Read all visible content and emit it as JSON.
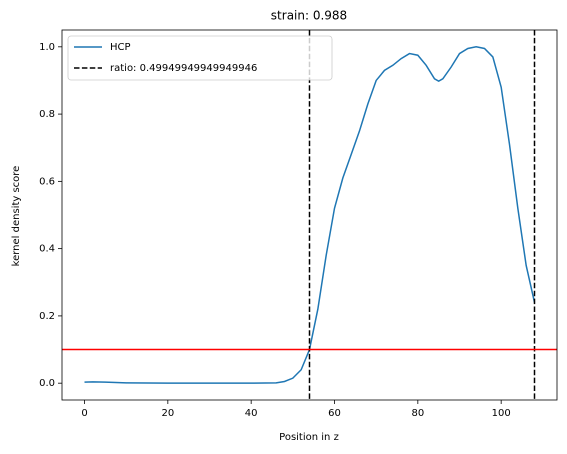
{
  "chart_data": {
    "type": "line",
    "title": "strain: 0.988",
    "xlabel": "Position in z",
    "ylabel": "kernel density score",
    "series": [
      {
        "name": "HCP",
        "color": "#1f77b4",
        "x": [
          0,
          2,
          5,
          10,
          20,
          40,
          46,
          48,
          50,
          52,
          54,
          56,
          58,
          60,
          62,
          64,
          66,
          68,
          70,
          72,
          74,
          76,
          78,
          80,
          82,
          84,
          85,
          86,
          88,
          90,
          92,
          94,
          96,
          98,
          100,
          102,
          104,
          106,
          108
        ],
        "values": [
          0.003,
          0.004,
          0.003,
          0.001,
          0,
          0,
          0.001,
          0.005,
          0.015,
          0.04,
          0.1,
          0.22,
          0.38,
          0.52,
          0.61,
          0.68,
          0.75,
          0.83,
          0.9,
          0.93,
          0.945,
          0.965,
          0.98,
          0.975,
          0.945,
          0.905,
          0.898,
          0.905,
          0.94,
          0.98,
          0.995,
          1.0,
          0.995,
          0.97,
          0.88,
          0.71,
          0.52,
          0.35,
          0.24
        ]
      }
    ],
    "vlines": {
      "name": "ratio: 0.49949949949949946",
      "color": "#000000",
      "x": [
        54,
        108
      ]
    },
    "hline": {
      "color": "#ff0000",
      "y": 0.1
    },
    "xlim": [
      -5.4,
      113.4
    ],
    "xticks": [
      0,
      20,
      40,
      60,
      80,
      100
    ],
    "ylim": [
      -0.05,
      1.05
    ],
    "yticks": [
      {
        "value": 0,
        "label": "0.0"
      },
      {
        "value": 0.2,
        "label": "0.2"
      },
      {
        "value": 0.4,
        "label": "0.4"
      },
      {
        "value": 0.6,
        "label": "0.6"
      },
      {
        "value": 0.8,
        "label": "0.8"
      },
      {
        "value": 1,
        "label": "1.0"
      }
    ],
    "legend": "upper left"
  }
}
